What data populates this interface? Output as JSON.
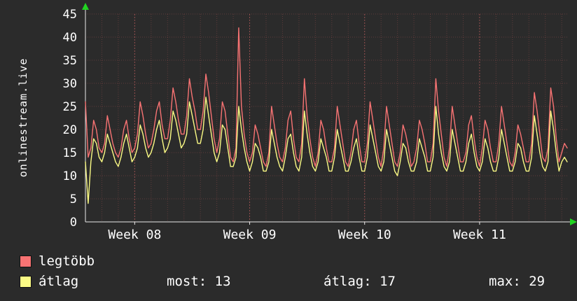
{
  "page": {
    "background": "#2b2b2b"
  },
  "chart": {
    "vertical_label": "onlinestream.live",
    "colors": {
      "background": "#2b2b2b",
      "series_legtobb": "#f87373",
      "series_atlag": "#fbfb85",
      "grid_minor": "rgba(214,96,96,0.30)",
      "grid_major": "rgba(235,110,110,0.55)",
      "axis": "#e8e8e8",
      "arrow": "#21d421",
      "text": "#ffffff"
    },
    "legend": [
      {
        "label": "legtöbb",
        "color": "#f87373"
      },
      {
        "label": "átlag",
        "color": "#fbfb85"
      }
    ],
    "stats": [
      "most: 13",
      "átlag: 17",
      "max: 29"
    ]
  },
  "chart_data": {
    "type": "line",
    "title": "",
    "xlabel": "",
    "ylabel": "onlinestream.live",
    "ylim": [
      0,
      45
    ],
    "ytick_step": 5,
    "grid": true,
    "legend_position": "bottom-left",
    "x_axis_labels": [
      "Week 08",
      "Week 09",
      "Week 10",
      "Week 11"
    ],
    "points_per_day": 6,
    "week_boundary_indices": [
      18,
      60,
      102,
      144
    ],
    "series": [
      {
        "name": "legtöbb",
        "color": "#f87373",
        "values": [
          26,
          14,
          16,
          22,
          20,
          16,
          15,
          17,
          23,
          20,
          17,
          15,
          14,
          16,
          20,
          22,
          18,
          15,
          16,
          19,
          26,
          23,
          19,
          16,
          17,
          20,
          24,
          26,
          21,
          18,
          18,
          22,
          29,
          26,
          22,
          19,
          19,
          23,
          31,
          27,
          24,
          20,
          20,
          24,
          32,
          28,
          23,
          18,
          15,
          18,
          26,
          24,
          19,
          14,
          13,
          16,
          42,
          25,
          19,
          15,
          13,
          15,
          21,
          19,
          16,
          13,
          12,
          15,
          25,
          21,
          17,
          14,
          13,
          16,
          22,
          24,
          18,
          14,
          13,
          17,
          31,
          23,
          18,
          14,
          12,
          15,
          22,
          20,
          16,
          13,
          13,
          16,
          25,
          21,
          17,
          13,
          12,
          15,
          20,
          22,
          17,
          13,
          13,
          17,
          26,
          22,
          18,
          14,
          12,
          16,
          25,
          21,
          17,
          13,
          12,
          15,
          21,
          19,
          16,
          12,
          13,
          16,
          22,
          20,
          17,
          13,
          13,
          17,
          31,
          24,
          19,
          14,
          12,
          16,
          25,
          21,
          17,
          13,
          13,
          15,
          21,
          23,
          18,
          14,
          12,
          16,
          22,
          20,
          16,
          13,
          13,
          17,
          25,
          21,
          17,
          13,
          12,
          15,
          21,
          19,
          16,
          13,
          13,
          17,
          28,
          24,
          19,
          14,
          13,
          16,
          29,
          25,
          18,
          13,
          15,
          17,
          16
        ]
      },
      {
        "name": "átlag",
        "color": "#fbfb85",
        "values": [
          13,
          4,
          13,
          18,
          17,
          14,
          13,
          15,
          19,
          17,
          15,
          13,
          12,
          14,
          17,
          19,
          16,
          13,
          14,
          16,
          21,
          19,
          16,
          14,
          15,
          17,
          20,
          22,
          18,
          15,
          16,
          18,
          24,
          22,
          19,
          16,
          17,
          19,
          26,
          23,
          20,
          17,
          17,
          20,
          27,
          23,
          19,
          15,
          13,
          15,
          21,
          20,
          16,
          12,
          12,
          14,
          25,
          20,
          16,
          13,
          11,
          13,
          17,
          16,
          14,
          11,
          11,
          13,
          20,
          17,
          14,
          12,
          11,
          14,
          18,
          19,
          15,
          12,
          11,
          14,
          24,
          19,
          15,
          12,
          11,
          13,
          18,
          16,
          14,
          11,
          11,
          14,
          20,
          17,
          14,
          11,
          11,
          13,
          16,
          18,
          14,
          11,
          11,
          14,
          21,
          18,
          15,
          12,
          11,
          13,
          20,
          17,
          14,
          11,
          10,
          13,
          17,
          16,
          13,
          11,
          11,
          13,
          18,
          16,
          14,
          11,
          11,
          14,
          25,
          19,
          15,
          12,
          11,
          13,
          20,
          17,
          14,
          11,
          11,
          13,
          17,
          19,
          15,
          12,
          11,
          13,
          18,
          16,
          13,
          11,
          11,
          14,
          20,
          17,
          14,
          11,
          11,
          13,
          17,
          16,
          13,
          11,
          11,
          14,
          23,
          19,
          15,
          12,
          11,
          13,
          24,
          20,
          15,
          11,
          13,
          14,
          13
        ]
      }
    ]
  }
}
